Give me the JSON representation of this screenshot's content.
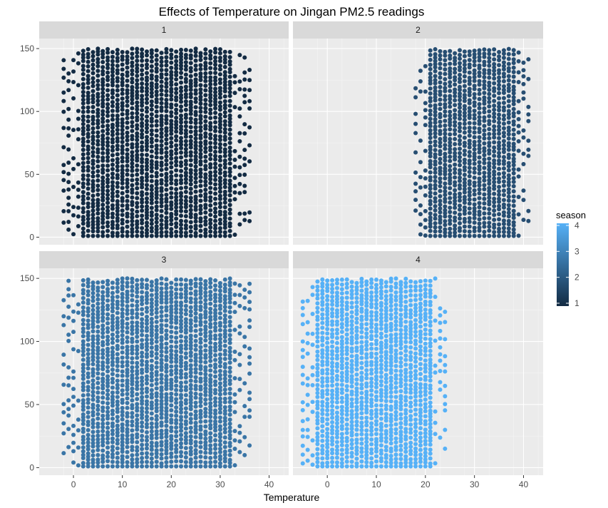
{
  "chart_data": {
    "type": "scatter",
    "title": "Effects of Temperature on Jingan PM2.5 readings",
    "xlabel": "Temperature",
    "ylabel": "",
    "xlim": [
      -7,
      44
    ],
    "ylim": [
      -6,
      158
    ],
    "x_ticks": [
      0,
      10,
      20,
      30,
      40
    ],
    "y_ticks": [
      0,
      50,
      100,
      150
    ],
    "grid": true,
    "facet_by": "season",
    "facets": [
      {
        "label": "1",
        "season": 1,
        "x_range": [
          -2,
          36
        ],
        "y_range": [
          1,
          150
        ],
        "color": "#132B43"
      },
      {
        "label": "2",
        "season": 2,
        "x_range": [
          18,
          41
        ],
        "y_range": [
          1,
          150
        ],
        "color": "#274E72"
      },
      {
        "label": "3",
        "season": 3,
        "x_range": [
          -2,
          36
        ],
        "y_range": [
          1,
          150
        ],
        "color": "#3A75A6"
      },
      {
        "label": "4",
        "season": 4,
        "x_range": [
          -5,
          24
        ],
        "y_range": [
          1,
          150
        ],
        "color": "#56B1F7"
      }
    ],
    "legend": {
      "title": "season",
      "placement": "right",
      "type": "colorbar",
      "min": 1,
      "max": 4,
      "labels": [
        "1",
        "2",
        "3",
        "4"
      ],
      "low_color": "#132B43",
      "high_color": "#56B1F7"
    }
  }
}
